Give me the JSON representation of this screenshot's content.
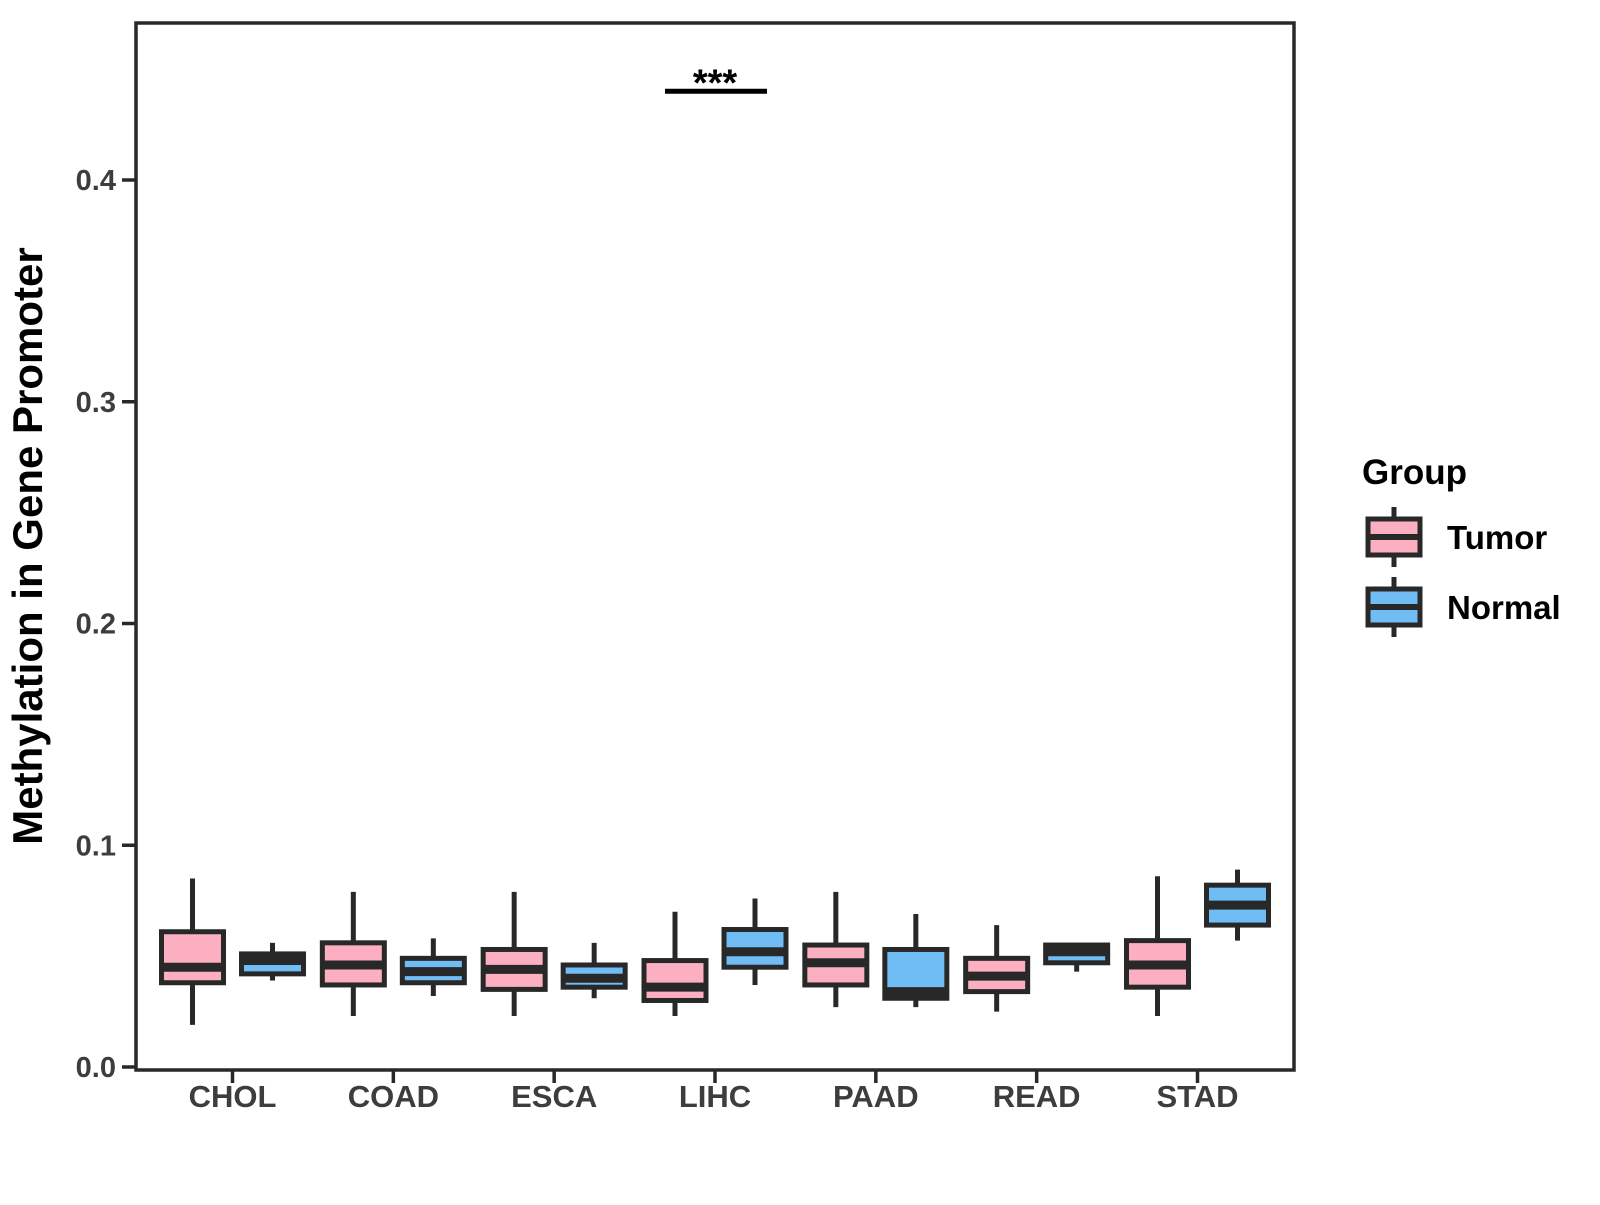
{
  "figure": {
    "background": "#FFFFFF"
  },
  "chart_data": {
    "type": "boxplot",
    "title": "",
    "xlabel": "",
    "ylabel": "Methylation in Gene Promoter",
    "categories": [
      "CHOL",
      "COAD",
      "ESCA",
      "LIHC",
      "PAAD",
      "READ",
      "STAD"
    ],
    "y_axis": {
      "ylim": [
        0,
        0.47
      ],
      "ticks": [
        0.0,
        0.1,
        0.2,
        0.3,
        0.4
      ],
      "tick_labels": [
        "0.0",
        "0.1",
        "0.2",
        "0.3",
        "0.4"
      ],
      "grid": false
    },
    "series": [
      {
        "name": "Tumor",
        "color": "#FCAFC0",
        "boxes": [
          {
            "category": "CHOL",
            "min": 0.019,
            "q1": 0.038,
            "median": 0.045,
            "q3": 0.061,
            "max": 0.085
          },
          {
            "category": "COAD",
            "min": 0.023,
            "q1": 0.037,
            "median": 0.046,
            "q3": 0.056,
            "max": 0.079
          },
          {
            "category": "ESCA",
            "min": 0.023,
            "q1": 0.035,
            "median": 0.044,
            "q3": 0.053,
            "max": 0.079
          },
          {
            "category": "LIHC",
            "min": 0.023,
            "q1": 0.03,
            "median": 0.036,
            "q3": 0.048,
            "max": 0.07
          },
          {
            "category": "PAAD",
            "min": 0.027,
            "q1": 0.037,
            "median": 0.047,
            "q3": 0.055,
            "max": 0.079
          },
          {
            "category": "READ",
            "min": 0.025,
            "q1": 0.034,
            "median": 0.041,
            "q3": 0.049,
            "max": 0.064
          },
          {
            "category": "STAD",
            "min": 0.023,
            "q1": 0.036,
            "median": 0.046,
            "q3": 0.057,
            "max": 0.086
          }
        ]
      },
      {
        "name": "Normal",
        "color": "#70BDF6",
        "boxes": [
          {
            "category": "CHOL",
            "min": 0.039,
            "q1": 0.042,
            "median": 0.048,
            "q3": 0.051,
            "max": 0.056
          },
          {
            "category": "COAD",
            "min": 0.032,
            "q1": 0.038,
            "median": 0.043,
            "q3": 0.049,
            "max": 0.058
          },
          {
            "category": "ESCA",
            "min": 0.031,
            "q1": 0.036,
            "median": 0.04,
            "q3": 0.046,
            "max": 0.056
          },
          {
            "category": "LIHC",
            "min": 0.037,
            "q1": 0.045,
            "median": 0.052,
            "q3": 0.062,
            "max": 0.076
          },
          {
            "category": "PAAD",
            "min": 0.027,
            "q1": 0.031,
            "median": 0.034,
            "q3": 0.053,
            "max": 0.069
          },
          {
            "category": "READ",
            "min": 0.043,
            "q1": 0.047,
            "median": 0.052,
            "q3": 0.055,
            "max": 0.055
          },
          {
            "category": "STAD",
            "min": 0.057,
            "q1": 0.064,
            "median": 0.073,
            "q3": 0.082,
            "max": 0.089
          }
        ]
      }
    ],
    "annotation": {
      "text": "***",
      "category": "LIHC",
      "y": 0.44
    },
    "legend_position": "right",
    "stroke_color": "#282828",
    "axis_text_color": "#3D3D3D",
    "title_text_color": "#000000"
  },
  "legend": {
    "title": "Group",
    "items": [
      {
        "label": "Tumor",
        "color": "#FCAFC0"
      },
      {
        "label": "Normal",
        "color": "#70BDF6"
      }
    ]
  }
}
